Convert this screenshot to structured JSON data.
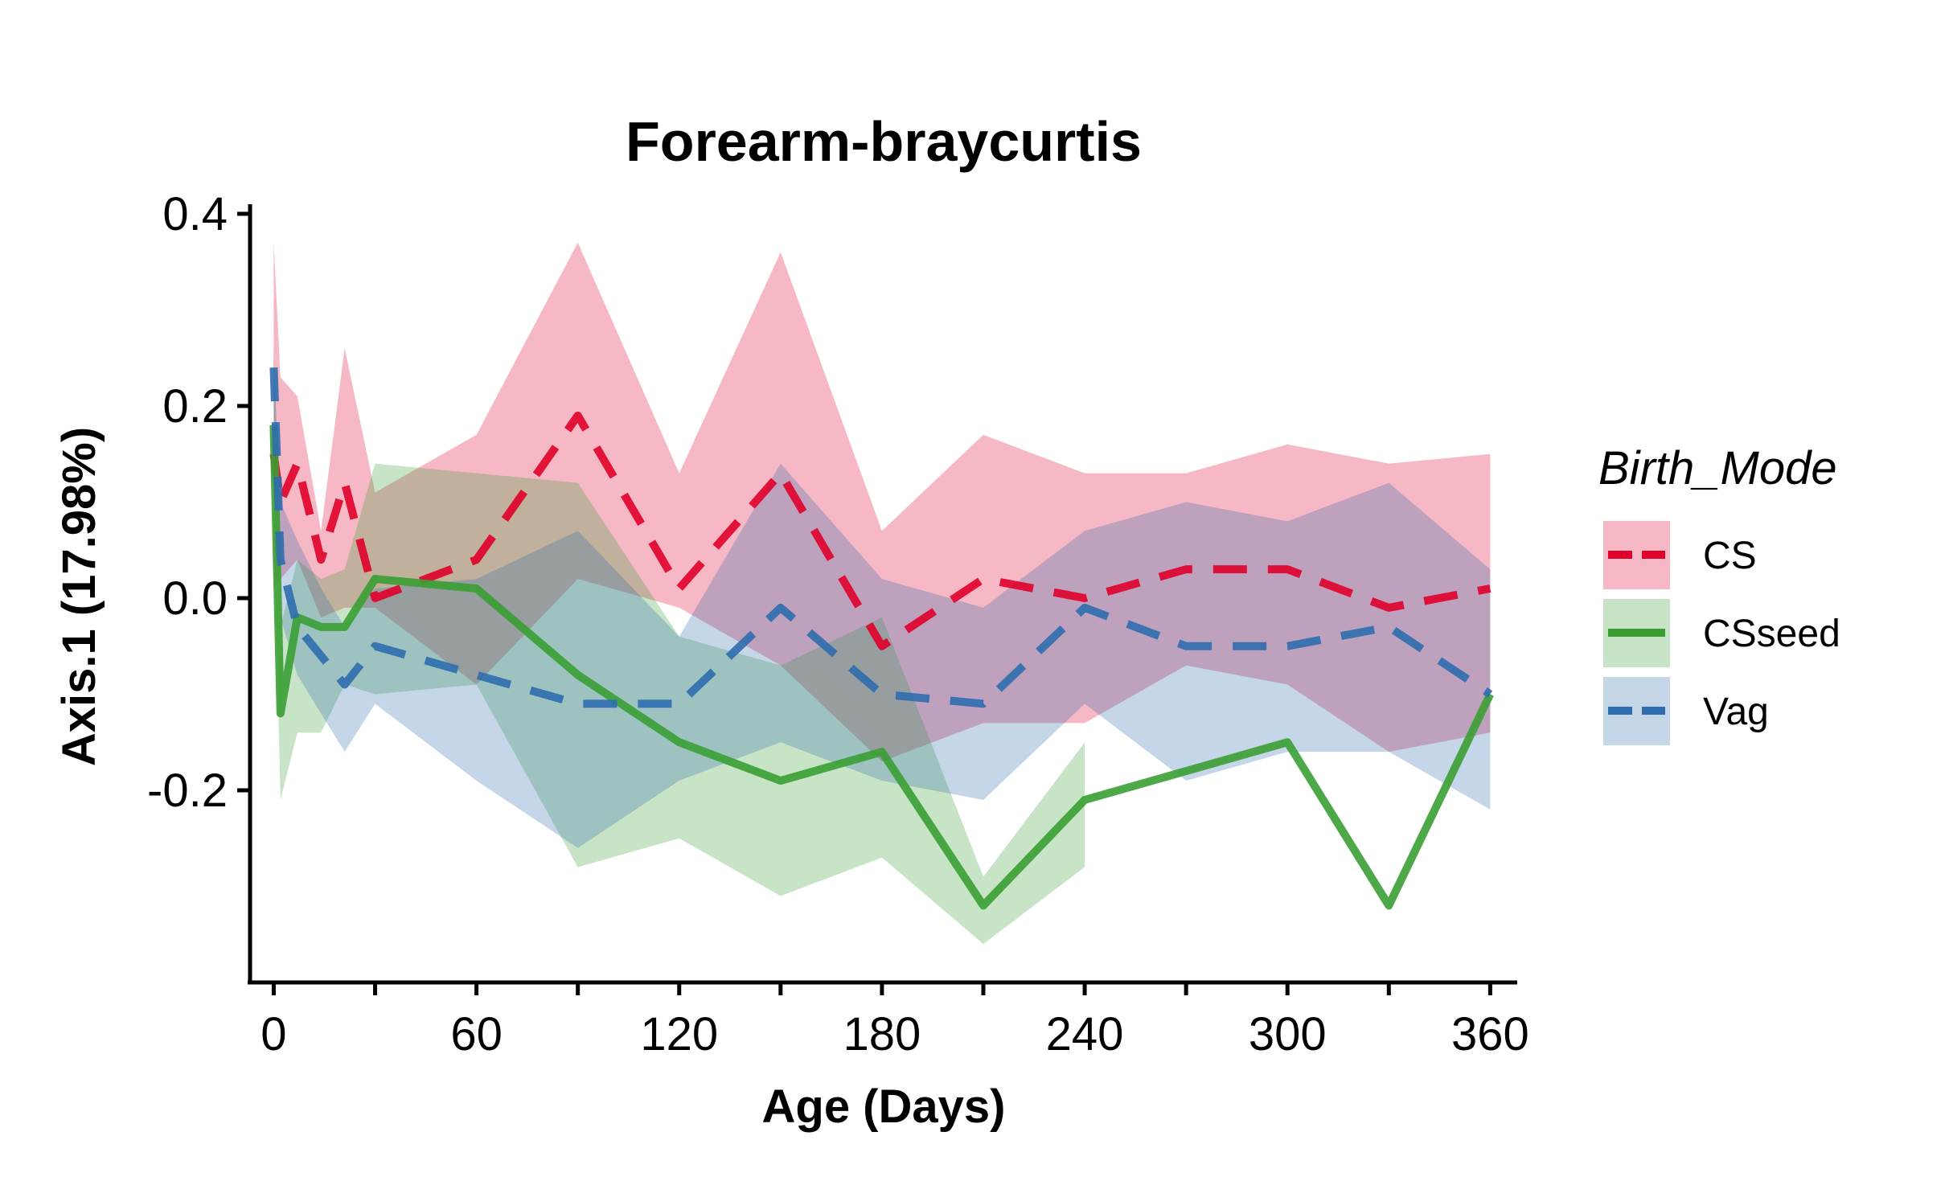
{
  "chart_data": {
    "type": "line",
    "title": "Forearm-braycurtis",
    "xlabel": "Age (Days)",
    "ylabel": "Axis.1 (17.98%)",
    "xlim": [
      -7,
      368
    ],
    "ylim": [
      -0.4,
      0.41
    ],
    "x_ticks": [
      0,
      30,
      60,
      90,
      120,
      150,
      180,
      210,
      240,
      270,
      300,
      330,
      360
    ],
    "x_tick_labels": [
      "0",
      "",
      "60",
      "",
      "120",
      "",
      "180",
      "",
      "240",
      "",
      "300",
      "",
      "360"
    ],
    "y_ticks": [
      -0.2,
      0.0,
      0.2,
      0.4
    ],
    "y_tick_labels": [
      "-0.2",
      "0.0",
      "0.2",
      "0.4"
    ],
    "grid": false,
    "legend": {
      "title": "Birth_Mode",
      "position": "right"
    },
    "series": [
      {
        "name": "CS",
        "color": "#E0002A",
        "line_style": "dashed",
        "points": [
          {
            "x": 0,
            "y": 0.15,
            "lo": 0.01,
            "hi": 0.37
          },
          {
            "x": 2,
            "y": 0.1,
            "lo": 0.02,
            "hi": 0.23
          },
          {
            "x": 7,
            "y": 0.14,
            "lo": 0.04,
            "hi": 0.21
          },
          {
            "x": 14,
            "y": 0.04,
            "lo": -0.02,
            "hi": 0.07
          },
          {
            "x": 21,
            "y": 0.12,
            "lo": -0.01,
            "hi": 0.26
          },
          {
            "x": 30,
            "y": 0.0,
            "lo": -0.01,
            "hi": 0.11
          },
          {
            "x": 60,
            "y": 0.04,
            "lo": -0.09,
            "hi": 0.17
          },
          {
            "x": 90,
            "y": 0.19,
            "lo": 0.02,
            "hi": 0.37
          },
          {
            "x": 120,
            "y": 0.01,
            "lo": -0.01,
            "hi": 0.13
          },
          {
            "x": 150,
            "y": 0.13,
            "lo": -0.07,
            "hi": 0.36
          },
          {
            "x": 180,
            "y": -0.05,
            "lo": -0.17,
            "hi": 0.07
          },
          {
            "x": 210,
            "y": 0.02,
            "lo": -0.13,
            "hi": 0.17
          },
          {
            "x": 240,
            "y": 0.0,
            "lo": -0.13,
            "hi": 0.13
          },
          {
            "x": 270,
            "y": 0.03,
            "lo": -0.07,
            "hi": 0.13
          },
          {
            "x": 300,
            "y": 0.03,
            "lo": -0.09,
            "hi": 0.16
          },
          {
            "x": 330,
            "y": -0.01,
            "lo": -0.16,
            "hi": 0.14
          },
          {
            "x": 360,
            "y": 0.01,
            "lo": -0.14,
            "hi": 0.15
          }
        ]
      },
      {
        "name": "CSseed",
        "color": "#3A9E33",
        "line_style": "solid",
        "points": [
          {
            "x": 0,
            "y": 0.18,
            "lo": 0.09,
            "hi": 0.27
          },
          {
            "x": 2,
            "y": -0.12,
            "lo": -0.21,
            "hi": -0.03
          },
          {
            "x": 7,
            "y": -0.02,
            "lo": -0.14,
            "hi": 0.04
          },
          {
            "x": 14,
            "y": -0.03,
            "lo": -0.14,
            "hi": 0.02
          },
          {
            "x": 21,
            "y": -0.03,
            "lo": -0.09,
            "hi": 0.03
          },
          {
            "x": 30,
            "y": 0.02,
            "lo": -0.1,
            "hi": 0.14
          },
          {
            "x": 60,
            "y": 0.01,
            "lo": -0.09,
            "hi": 0.13
          },
          {
            "x": 90,
            "y": -0.08,
            "lo": -0.28,
            "hi": 0.12
          },
          {
            "x": 120,
            "y": -0.15,
            "lo": -0.25,
            "hi": -0.04
          },
          {
            "x": 150,
            "y": -0.19,
            "lo": -0.31,
            "hi": -0.07
          },
          {
            "x": 180,
            "y": -0.16,
            "lo": -0.27,
            "hi": -0.02
          },
          {
            "x": 210,
            "y": -0.32,
            "lo": -0.36,
            "hi": -0.29
          },
          {
            "x": 240,
            "y": -0.21,
            "lo": -0.28,
            "hi": -0.15
          },
          {
            "x": 270,
            "y": -0.18
          },
          {
            "x": 300,
            "y": -0.15
          },
          {
            "x": 330,
            "y": -0.32
          },
          {
            "x": 360,
            "y": -0.1
          }
        ]
      },
      {
        "name": "Vag",
        "color": "#2F6DAE",
        "line_style": "dashed",
        "points": [
          {
            "x": 0,
            "y": 0.24,
            "lo": 0.2,
            "hi": 0.25
          },
          {
            "x": 2,
            "y": 0.04,
            "lo": -0.02,
            "hi": 0.1
          },
          {
            "x": 7,
            "y": -0.03,
            "lo": -0.08,
            "hi": 0.06
          },
          {
            "x": 14,
            "y": -0.06,
            "lo": -0.12,
            "hi": 0.01
          },
          {
            "x": 21,
            "y": -0.09,
            "lo": -0.16,
            "hi": -0.03
          },
          {
            "x": 30,
            "y": -0.05,
            "lo": -0.11,
            "hi": 0.01
          },
          {
            "x": 60,
            "y": -0.08,
            "lo": -0.19,
            "hi": 0.02
          },
          {
            "x": 90,
            "y": -0.11,
            "lo": -0.26,
            "hi": 0.07
          },
          {
            "x": 120,
            "y": -0.11,
            "lo": -0.19,
            "hi": -0.04
          },
          {
            "x": 150,
            "y": -0.01,
            "lo": -0.15,
            "hi": 0.14
          },
          {
            "x": 180,
            "y": -0.1,
            "lo": -0.19,
            "hi": 0.02
          },
          {
            "x": 210,
            "y": -0.11,
            "lo": -0.21,
            "hi": -0.01
          },
          {
            "x": 240,
            "y": -0.01,
            "lo": -0.11,
            "hi": 0.07
          },
          {
            "x": 270,
            "y": -0.05,
            "lo": -0.19,
            "hi": 0.1
          },
          {
            "x": 300,
            "y": -0.05,
            "lo": -0.16,
            "hi": 0.08
          },
          {
            "x": 330,
            "y": -0.03,
            "lo": -0.16,
            "hi": 0.12
          },
          {
            "x": 360,
            "y": -0.1,
            "lo": -0.22,
            "hi": 0.03
          }
        ]
      }
    ]
  }
}
